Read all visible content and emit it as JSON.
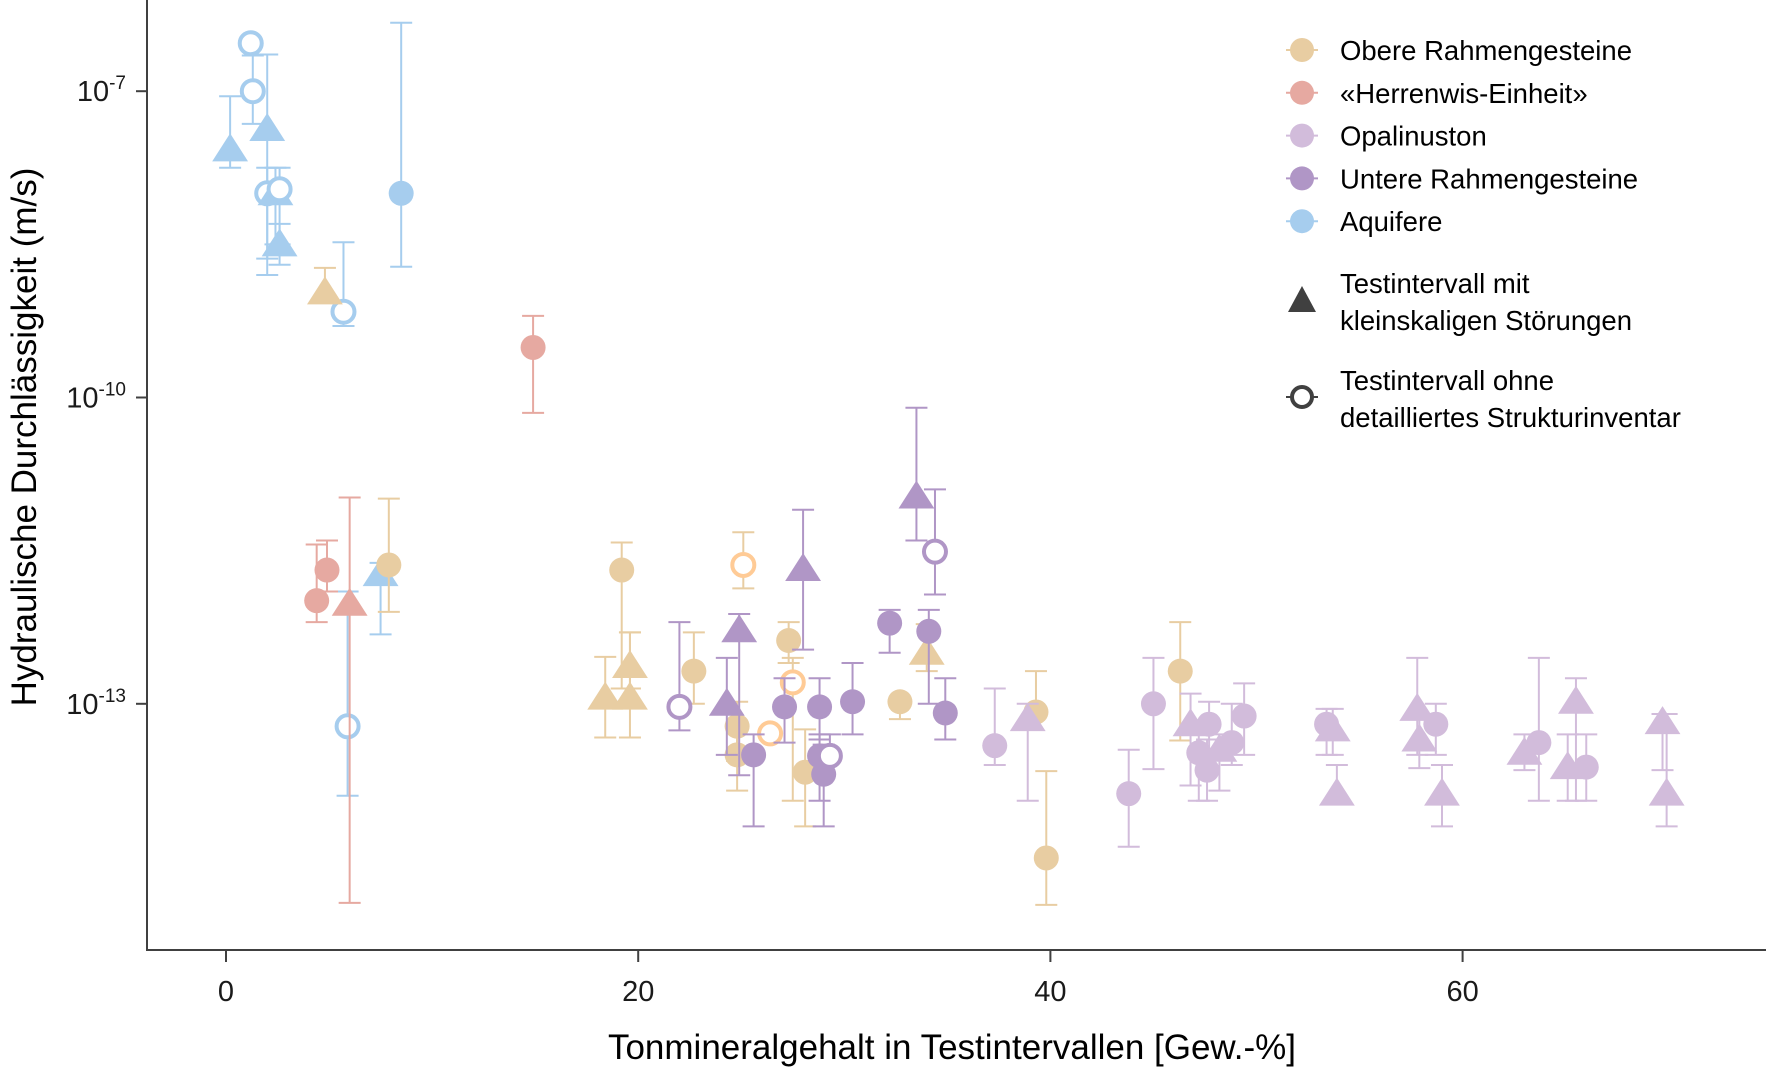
{
  "chart_data": {
    "type": "scatter",
    "title": "",
    "xlabel": "Tonmineralgehalt in Testintervallen [Gew.-%]",
    "ylabel": "Hydraulische Durchlässigkeit (m/s)",
    "xlim": [
      -5.5,
      74
    ],
    "ylim_log10": [
      -15.4,
      -6.0
    ],
    "y_scale": "log10",
    "x_ticks": [
      {
        "value": 0,
        "label": "0"
      },
      {
        "value": 20,
        "label": "20"
      },
      {
        "value": 40,
        "label": "40"
      },
      {
        "value": 60,
        "label": "60"
      }
    ],
    "y_ticks": [
      {
        "log10": -7,
        "base": "10",
        "exp": "-7"
      },
      {
        "log10": -10,
        "base": "10",
        "exp": "-10"
      },
      {
        "log10": -13,
        "base": "10",
        "exp": "-13"
      }
    ],
    "grid": false,
    "legend_position": "top-right",
    "legend": {
      "series": [
        {
          "key": "obere",
          "label": "Obere Rahmengesteine",
          "color": "#E8CDA2"
        },
        {
          "key": "herrenwis",
          "label": "«Herrenwis-Einheit»",
          "color": "#E6A9A1"
        },
        {
          "key": "opalinus",
          "label": "Opalinuston",
          "color": "#D2BCDB"
        },
        {
          "key": "untere",
          "label": "Untere Rahmengesteine",
          "color": "#B096C6"
        },
        {
          "key": "aquifere",
          "label": "Aquifere",
          "color": "#A6CDEE"
        }
      ],
      "shapes": [
        {
          "shape": "triangle",
          "label_lines": [
            "Testintervall mit",
            "kleinskaligen Störungen"
          ]
        },
        {
          "shape": "open-circle",
          "label_lines": [
            "Testintervall ohne",
            "detailliertes Strukturinventar"
          ]
        }
      ],
      "shape_color": "#404040"
    },
    "open_circle_colors": {
      "obere": "#FFCB96"
    },
    "series": [
      {
        "name": "Aquifere",
        "key": "aquifere",
        "points": [
          {
            "x": 0.2,
            "y": -7.57,
            "lo": -7.75,
            "hi": -7.05,
            "shape": "triangle"
          },
          {
            "x": 1.2,
            "y": -6.53,
            "lo": null,
            "hi": null,
            "shape": "open-circle"
          },
          {
            "x": 1.3,
            "y": -7.0,
            "lo": -7.32,
            "hi": -6.65,
            "shape": "open-circle"
          },
          {
            "x": 2.0,
            "y": -7.37,
            "lo": -8.64,
            "hi": -6.64,
            "shape": "triangle"
          },
          {
            "x": 2.0,
            "y": -8.0,
            "lo": -8.8,
            "hi": -7.75,
            "shape": "open-circle"
          },
          {
            "x": 2.4,
            "y": -8.0,
            "lo": -8.5,
            "hi": -7.75,
            "shape": "triangle"
          },
          {
            "x": 2.6,
            "y": -7.96,
            "lo": -8.5,
            "hi": -7.75,
            "shape": "open-circle"
          },
          {
            "x": 2.6,
            "y": -8.5,
            "lo": -8.7,
            "hi": -8.3,
            "shape": "triangle"
          },
          {
            "x": 5.7,
            "y": -9.16,
            "lo": -9.3,
            "hi": -8.48,
            "shape": "open-circle"
          },
          {
            "x": 8.5,
            "y": -8.0,
            "lo": -8.72,
            "hi": -6.33,
            "shape": "circle"
          },
          {
            "x": 7.5,
            "y": -11.73,
            "lo": -12.32,
            "hi": -11.62,
            "shape": "triangle"
          },
          {
            "x": 5.9,
            "y": -13.22,
            "lo": -13.9,
            "hi": -11.9,
            "shape": "open-circle"
          }
        ]
      },
      {
        "name": "Obere Rahmengesteine",
        "key": "obere",
        "points": [
          {
            "x": 4.8,
            "y": -8.97,
            "lo": -9.05,
            "hi": -8.73,
            "shape": "triangle"
          },
          {
            "x": 7.9,
            "y": -11.64,
            "lo": -12.1,
            "hi": -10.99,
            "shape": "circle"
          },
          {
            "x": 19.2,
            "y": -11.69,
            "lo": -12.85,
            "hi": -11.42,
            "shape": "circle"
          },
          {
            "x": 18.4,
            "y": -12.94,
            "lo": -13.33,
            "hi": -12.54,
            "shape": "triangle"
          },
          {
            "x": 19.6,
            "y": -12.94,
            "lo": -13.33,
            "hi": -12.3,
            "shape": "triangle"
          },
          {
            "x": 19.6,
            "y": -12.63,
            "lo": -12.85,
            "hi": -12.3,
            "shape": "triangle"
          },
          {
            "x": 22.7,
            "y": -12.68,
            "lo": -13.0,
            "hi": -12.3,
            "shape": "circle"
          },
          {
            "x": 25.1,
            "y": -11.64,
            "lo": -11.87,
            "hi": -11.32,
            "shape": "open-circle"
          },
          {
            "x": 24.8,
            "y": -13.22,
            "lo": -13.56,
            "hi": -12.98,
            "shape": "circle"
          },
          {
            "x": 24.8,
            "y": -13.5,
            "lo": -13.85,
            "hi": -13.22,
            "shape": "circle"
          },
          {
            "x": 27.3,
            "y": -12.38,
            "lo": -12.6,
            "hi": -12.2,
            "shape": "circle"
          },
          {
            "x": 27.5,
            "y": -12.79,
            "lo": -13.95,
            "hi": -12.55,
            "shape": "open-circle"
          },
          {
            "x": 26.4,
            "y": -13.29,
            "lo": null,
            "hi": null,
            "shape": "open-circle"
          },
          {
            "x": 28.1,
            "y": -13.67,
            "lo": -14.2,
            "hi": -13.25,
            "shape": "circle"
          },
          {
            "x": 32.7,
            "y": -12.98,
            "lo": -13.15,
            "hi": null,
            "shape": "circle"
          },
          {
            "x": 34.0,
            "y": -12.5,
            "lo": -12.68,
            "hi": -12.22,
            "shape": "triangle"
          },
          {
            "x": 39.3,
            "y": -13.08,
            "lo": null,
            "hi": -12.68,
            "shape": "circle"
          },
          {
            "x": 39.8,
            "y": -14.51,
            "lo": -14.97,
            "hi": -13.66,
            "shape": "circle"
          },
          {
            "x": 46.3,
            "y": -12.68,
            "lo": -13.36,
            "hi": -12.2,
            "shape": "circle"
          }
        ]
      },
      {
        "name": "«Herrenwis-Einheit»",
        "key": "herrenwis",
        "points": [
          {
            "x": 14.9,
            "y": -9.51,
            "lo": -10.15,
            "hi": -9.2,
            "shape": "circle"
          },
          {
            "x": 4.9,
            "y": -11.69,
            "lo": -11.9,
            "hi": -11.4,
            "shape": "circle"
          },
          {
            "x": 4.4,
            "y": -11.99,
            "lo": -12.2,
            "hi": -11.44,
            "shape": "circle"
          },
          {
            "x": 6.0,
            "y": -12.02,
            "lo": -14.95,
            "hi": -10.98,
            "shape": "triangle"
          }
        ]
      },
      {
        "name": "Untere Rahmengesteine",
        "key": "untere",
        "points": [
          {
            "x": 22.0,
            "y": -13.03,
            "lo": -13.26,
            "hi": -12.2,
            "shape": "open-circle"
          },
          {
            "x": 24.3,
            "y": -13.0,
            "lo": -13.5,
            "hi": -12.55,
            "shape": "triangle"
          },
          {
            "x": 24.9,
            "y": -12.28,
            "lo": -13.7,
            "hi": -12.12,
            "shape": "triangle"
          },
          {
            "x": 28.0,
            "y": -11.68,
            "lo": -12.47,
            "hi": -11.1,
            "shape": "triangle"
          },
          {
            "x": 27.1,
            "y": -13.03,
            "lo": -13.38,
            "hi": -12.75,
            "shape": "circle"
          },
          {
            "x": 28.8,
            "y": -13.03,
            "lo": -13.35,
            "hi": -12.75,
            "shape": "circle"
          },
          {
            "x": 30.4,
            "y": -12.98,
            "lo": -13.3,
            "hi": -12.6,
            "shape": "circle"
          },
          {
            "x": 25.6,
            "y": -13.5,
            "lo": -14.2,
            "hi": -13.3,
            "shape": "circle"
          },
          {
            "x": 29.0,
            "y": -13.69,
            "lo": -14.2,
            "hi": -13.4,
            "shape": "circle"
          },
          {
            "x": 28.8,
            "y": -13.51,
            "lo": -13.95,
            "hi": -13.3,
            "shape": "circle"
          },
          {
            "x": 29.3,
            "y": -13.51,
            "lo": null,
            "hi": -13.3,
            "shape": "open-circle"
          },
          {
            "x": 32.2,
            "y": -12.21,
            "lo": -12.5,
            "hi": -12.08,
            "shape": "circle"
          },
          {
            "x": 34.1,
            "y": -12.29,
            "lo": -13.0,
            "hi": -12.08,
            "shape": "circle"
          },
          {
            "x": 33.5,
            "y": -10.97,
            "lo": -11.4,
            "hi": -10.1,
            "shape": "triangle"
          },
          {
            "x": 34.4,
            "y": -11.51,
            "lo": -11.93,
            "hi": -10.9,
            "shape": "open-circle"
          },
          {
            "x": 34.9,
            "y": -13.09,
            "lo": -13.35,
            "hi": -12.75,
            "shape": "circle"
          }
        ]
      },
      {
        "name": "Opalinuston",
        "key": "opalinus",
        "points": [
          {
            "x": 37.3,
            "y": -13.41,
            "lo": -13.6,
            "hi": -12.85,
            "shape": "circle"
          },
          {
            "x": 38.9,
            "y": -13.15,
            "lo": -13.95,
            "hi": -13.0,
            "shape": "triangle"
          },
          {
            "x": 43.8,
            "y": -13.88,
            "lo": -14.4,
            "hi": -13.45,
            "shape": "circle"
          },
          {
            "x": 45.0,
            "y": -13.0,
            "lo": -13.64,
            "hi": -12.55,
            "shape": "circle"
          },
          {
            "x": 46.8,
            "y": -13.2,
            "lo": -13.8,
            "hi": -12.9,
            "shape": "triangle"
          },
          {
            "x": 47.2,
            "y": -13.48,
            "lo": -13.95,
            "hi": -13.3,
            "shape": "circle"
          },
          {
            "x": 47.6,
            "y": -13.65,
            "lo": -13.95,
            "hi": -13.35,
            "shape": "circle"
          },
          {
            "x": 47.7,
            "y": -13.2,
            "lo": -13.5,
            "hi": -12.98,
            "shape": "circle"
          },
          {
            "x": 48.2,
            "y": -13.45,
            "lo": -13.85,
            "hi": -13.3,
            "shape": "triangle"
          },
          {
            "x": 48.8,
            "y": -13.38,
            "lo": -13.6,
            "hi": -13.0,
            "shape": "circle"
          },
          {
            "x": 49.4,
            "y": -13.12,
            "lo": -13.5,
            "hi": -12.8,
            "shape": "circle"
          },
          {
            "x": 53.4,
            "y": -13.2,
            "lo": -13.5,
            "hi": -13.05,
            "shape": "circle"
          },
          {
            "x": 53.7,
            "y": -13.25,
            "lo": -13.5,
            "hi": -13.05,
            "shape": "triangle"
          },
          {
            "x": 53.9,
            "y": -13.88,
            "lo": null,
            "hi": -13.6,
            "shape": "triangle"
          },
          {
            "x": 57.8,
            "y": -13.05,
            "lo": -13.5,
            "hi": -12.55,
            "shape": "triangle"
          },
          {
            "x": 57.9,
            "y": -13.35,
            "lo": -13.63,
            "hi": -13.1,
            "shape": "triangle"
          },
          {
            "x": 58.7,
            "y": -13.2,
            "lo": -13.5,
            "hi": -13.0,
            "shape": "circle"
          },
          {
            "x": 59.0,
            "y": -13.88,
            "lo": -14.2,
            "hi": -13.6,
            "shape": "triangle"
          },
          {
            "x": 63.0,
            "y": -13.48,
            "lo": -13.65,
            "hi": -13.3,
            "shape": "triangle"
          },
          {
            "x": 63.7,
            "y": -13.38,
            "lo": -13.95,
            "hi": -12.55,
            "shape": "circle"
          },
          {
            "x": 65.1,
            "y": -13.62,
            "lo": -13.95,
            "hi": -13.3,
            "shape": "triangle"
          },
          {
            "x": 65.5,
            "y": -12.98,
            "lo": -13.95,
            "hi": -12.75,
            "shape": "triangle"
          },
          {
            "x": 66.0,
            "y": -13.62,
            "lo": -13.95,
            "hi": -13.3,
            "shape": "circle"
          },
          {
            "x": 69.7,
            "y": -13.18,
            "lo": -13.65,
            "hi": -13.1,
            "shape": "triangle"
          },
          {
            "x": 69.9,
            "y": -13.88,
            "lo": -14.2,
            "hi": -13.1,
            "shape": "triangle"
          }
        ]
      }
    ]
  }
}
